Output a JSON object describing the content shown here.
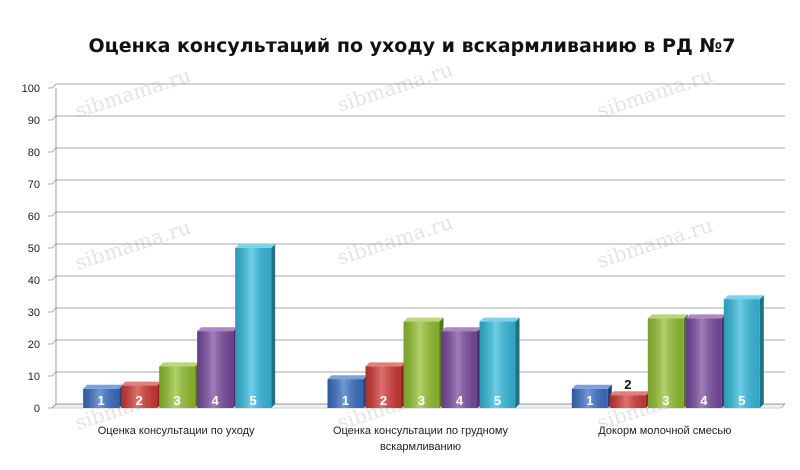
{
  "chart_data": {
    "type": "bar",
    "title": "Оценка консультаций по уходу и вскармливанию в РД №7",
    "categories": [
      [
        "Оценка консультации по уходу"
      ],
      [
        "Оценка консультации по грудному",
        "вскармливанию"
      ],
      [
        "Докорм молочной смесью"
      ]
    ],
    "series": [
      {
        "label": "1",
        "color": "#3a6fc4",
        "values": [
          6,
          9,
          6
        ]
      },
      {
        "label": "2",
        "color": "#d23a36",
        "values": [
          7,
          13,
          4
        ]
      },
      {
        "label": "3",
        "color": "#93c130",
        "values": [
          13,
          27,
          28
        ]
      },
      {
        "label": "4",
        "color": "#7a4aa0",
        "values": [
          24,
          24,
          28
        ]
      },
      {
        "label": "5",
        "color": "#35bcdf",
        "values": [
          50,
          27,
          34
        ]
      }
    ],
    "ylim": [
      0,
      100
    ],
    "yticks": [
      0,
      10,
      20,
      30,
      40,
      50,
      60,
      70,
      80,
      90,
      100
    ],
    "grid": true,
    "xlabel": "",
    "ylabel": ""
  },
  "watermark": "sibmama.ru"
}
